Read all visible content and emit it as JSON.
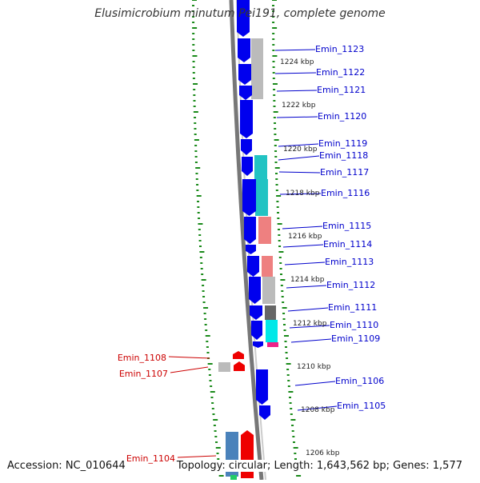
{
  "title": "Elusimicrobium minutum Pei191, complete genome",
  "footer": {
    "accession": "Accession: NC_010644",
    "summary": "Topology: circular; Length: 1,643,562 bp; Genes: 1,577"
  },
  "colors": {
    "forward_cds": "#0000ee",
    "reverse_cds": "#ee0000",
    "backbone": "#777777",
    "ticks": "#1a8a1a",
    "label_forward": "#0000cc",
    "label_reverse": "#cc0000"
  },
  "kbp_ticks": [
    "1224 kbp",
    "1222 kbp",
    "1220 kbp",
    "1218 kbp",
    "1216 kbp",
    "1214 kbp",
    "1212 kbp",
    "1210 kbp",
    "1208 kbp",
    "1206 kbp"
  ],
  "forward_genes": [
    "Emin_1123",
    "Emin_1122",
    "Emin_1121",
    "Emin_1120",
    "Emin_1119",
    "Emin_1118",
    "Emin_1117",
    "Emin_1116",
    "Emin_1115",
    "Emin_1114",
    "Emin_1113",
    "Emin_1112",
    "Emin_1111",
    "Emin_1110",
    "Emin_1109",
    "Emin_1106",
    "Emin_1105"
  ],
  "reverse_genes": [
    "Emin_1108",
    "Emin_1107",
    "Emin_1104"
  ]
}
